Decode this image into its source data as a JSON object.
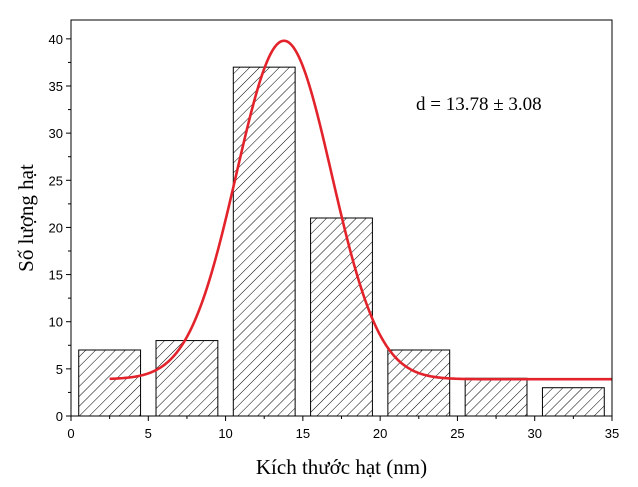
{
  "chart_data": {
    "type": "bar",
    "subtype": "histogram",
    "xlabel": "Kích thước hạt (nm)",
    "ylabel": "Số lượng hạt",
    "xlim": [
      0,
      35
    ],
    "ylim": [
      0,
      42
    ],
    "xticks": [
      0,
      5,
      10,
      15,
      20,
      25,
      30,
      35
    ],
    "yticks": [
      0,
      5,
      10,
      15,
      20,
      25,
      30,
      35,
      40
    ],
    "grid": false,
    "legend": "none",
    "annotation": "d = 13.78 ± 3.08",
    "bars": [
      {
        "x0": 0.5,
        "x1": 4.5,
        "value": 7
      },
      {
        "x0": 5.5,
        "x1": 9.5,
        "value": 8
      },
      {
        "x0": 10.5,
        "x1": 14.5,
        "value": 37
      },
      {
        "x0": 15.5,
        "x1": 19.5,
        "value": 21
      },
      {
        "x0": 20.5,
        "x1": 24.5,
        "value": 7
      },
      {
        "x0": 25.5,
        "x1": 29.5,
        "value": 4
      },
      {
        "x0": 30.5,
        "x1": 34.5,
        "value": 3
      }
    ],
    "fit_curve": {
      "type": "gaussian",
      "baseline": 3.9,
      "amplitude": 35.9,
      "center": 13.78,
      "sigma": 3.08,
      "x_range": [
        2.5,
        35
      ],
      "color": "#e3232b"
    },
    "bar_fill": "hatched",
    "bar_edge_color": "#000000"
  }
}
